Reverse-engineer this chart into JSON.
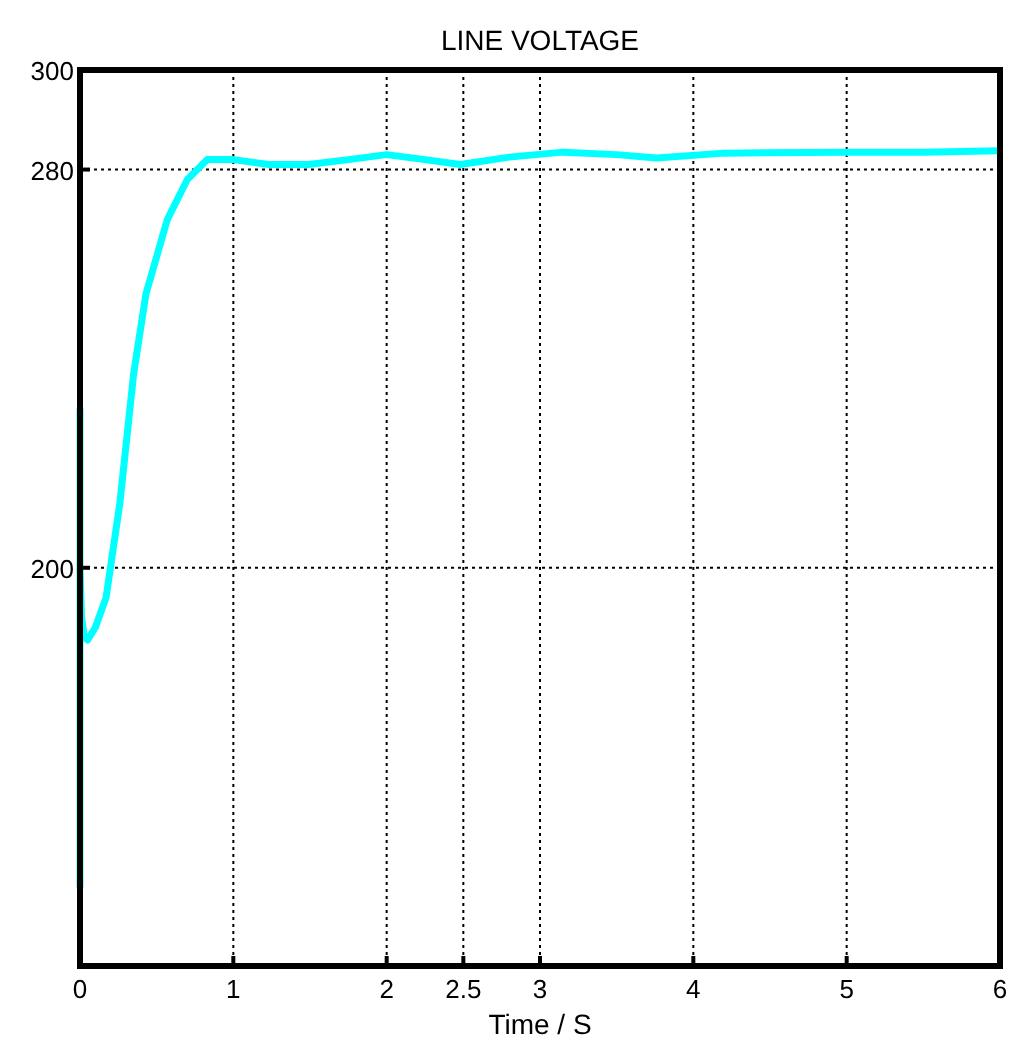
{
  "chart_data": {
    "type": "line",
    "title": "LINE VOLTAGE",
    "xlabel": "Time / S",
    "x": [
      0,
      0,
      0,
      0.01,
      0.03,
      0.05,
      0.1,
      0.17,
      0.26,
      0.35,
      0.43,
      0.57,
      0.7,
      0.83,
      1,
      1.23,
      1.49,
      1.75,
      2,
      2.25,
      2.48,
      2.8,
      3.15,
      3.5,
      3.76,
      4.2,
      5,
      5.5,
      6
    ],
    "series": [
      {
        "color": "#00ffff",
        "values": [
          232,
          136,
          200,
          190,
          186,
          185.5,
          188,
          194,
          213,
          239,
          255,
          270,
          278,
          282,
          282,
          281,
          281,
          282,
          283,
          282,
          281,
          282.5,
          283.5,
          283,
          282.3,
          283.3,
          283.5,
          283.5,
          283.8
        ]
      }
    ],
    "xlim": [
      0,
      6
    ],
    "ylim": [
      120,
      300
    ],
    "xticks": [
      0,
      1,
      2,
      2.5,
      3,
      4,
      5,
      6
    ],
    "yticks": [
      200,
      280,
      300
    ],
    "grid": true,
    "line_style": "solid",
    "marker": "none"
  }
}
